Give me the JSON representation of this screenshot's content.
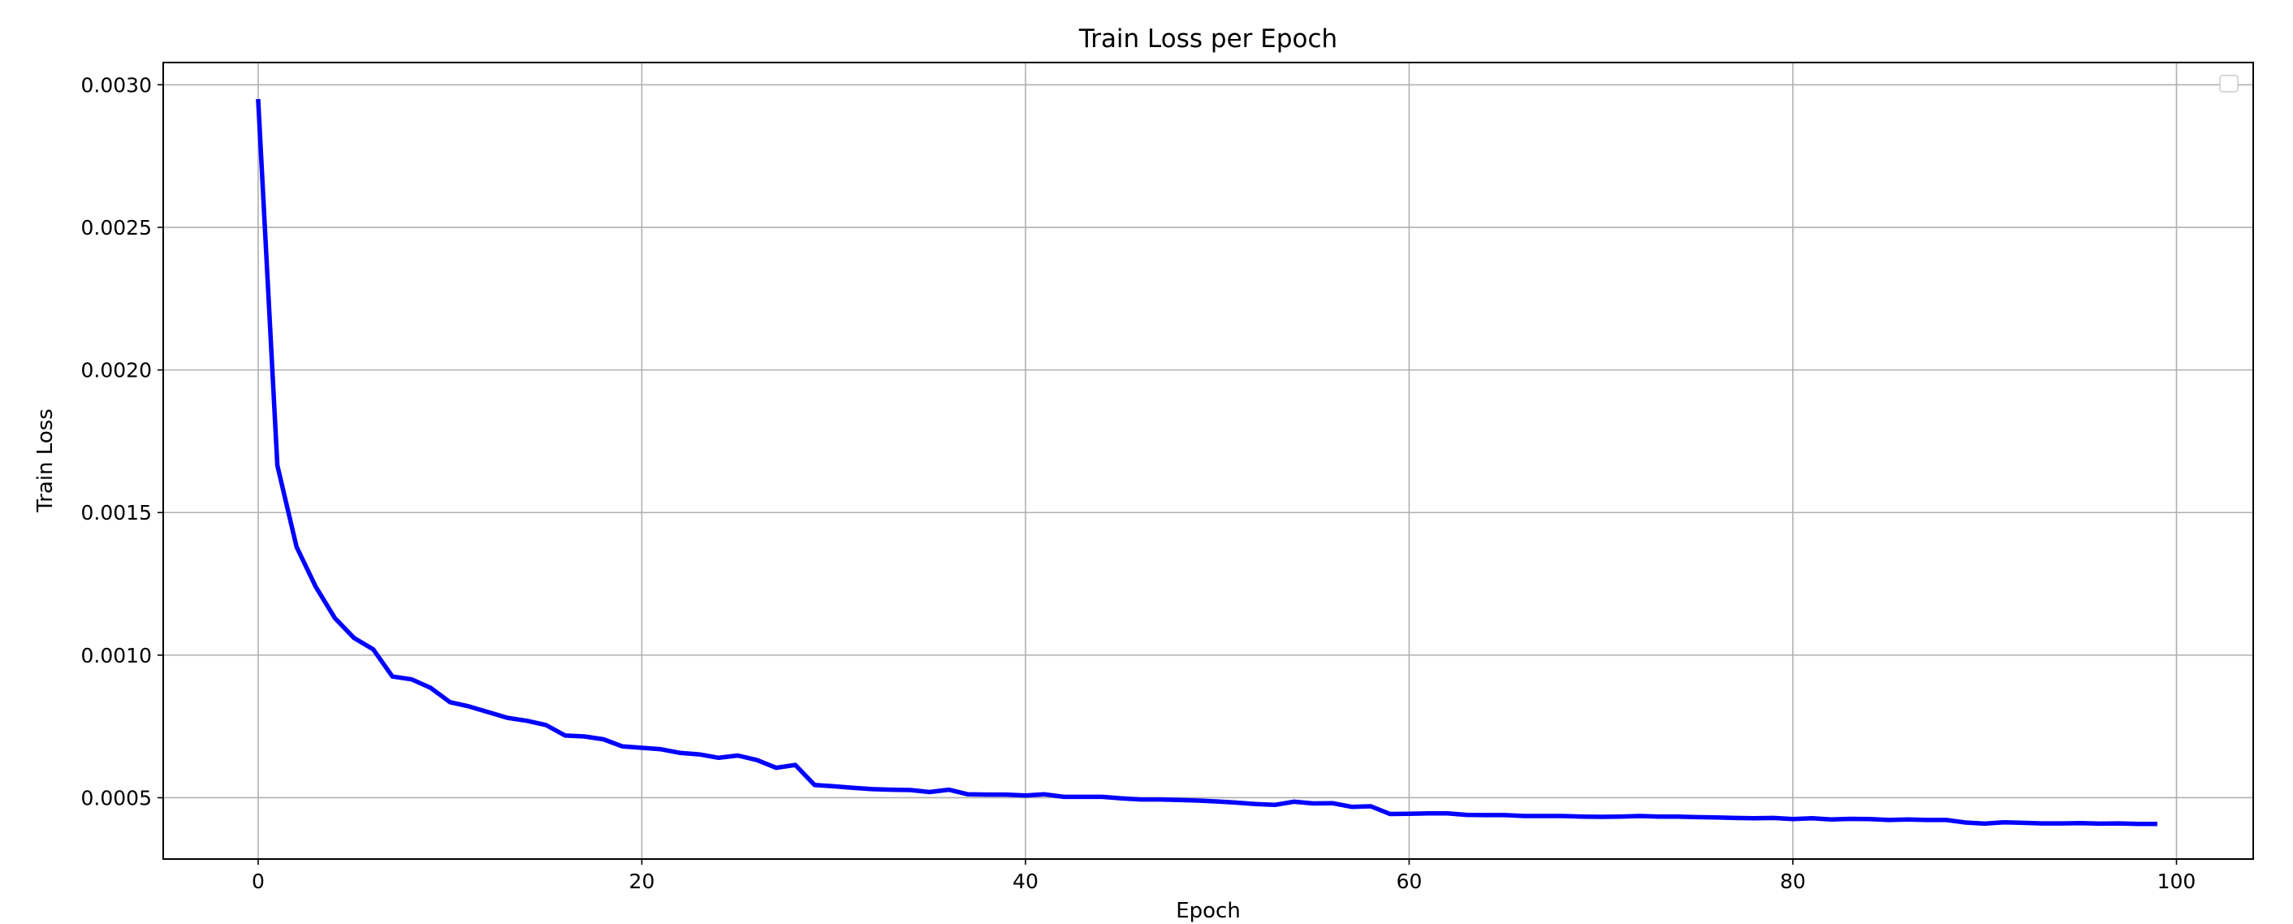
{
  "chart_data": {
    "type": "line",
    "title": "Train Loss per Epoch",
    "xlabel": "Epoch",
    "ylabel": "Train Loss",
    "xlim": [
      -4.95,
      104.0
    ],
    "ylim": [
      0.000285,
      0.003078
    ],
    "xticks": [
      0,
      20,
      40,
      60,
      80,
      100
    ],
    "xtick_labels": [
      "0",
      "20",
      "40",
      "60",
      "80",
      "100"
    ],
    "yticks": [
      0.0005,
      0.001,
      0.0015,
      0.002,
      0.0025,
      0.003
    ],
    "ytick_labels": [
      "0.0005",
      "0.0010",
      "0.0015",
      "0.0020",
      "0.0025",
      "0.0030"
    ],
    "grid": true,
    "legend": {
      "placement": "top-right",
      "entries": []
    },
    "series": [
      {
        "color": "#0000ff",
        "x": [
          0,
          1,
          2,
          3,
          4,
          5,
          6,
          7,
          8,
          9,
          10,
          11,
          12,
          13,
          14,
          15,
          16,
          17,
          18,
          19,
          20,
          21,
          22,
          23,
          24,
          25,
          26,
          27,
          28,
          29,
          30,
          31,
          32,
          33,
          34,
          35,
          36,
          37,
          38,
          39,
          40,
          41,
          42,
          43,
          44,
          45,
          46,
          47,
          48,
          49,
          50,
          51,
          52,
          53,
          54,
          55,
          56,
          57,
          58,
          59,
          60,
          61,
          62,
          63,
          64,
          65,
          66,
          67,
          68,
          69,
          70,
          71,
          72,
          73,
          74,
          75,
          76,
          77,
          78,
          79,
          80,
          81,
          82,
          83,
          84,
          85,
          86,
          87,
          88,
          89,
          90,
          91,
          92,
          93,
          94,
          95,
          96,
          97,
          98,
          99
        ],
        "y": [
          0.00295,
          0.001665,
          0.00138,
          0.00124,
          0.00113,
          0.00106,
          0.00102,
          0.000925,
          0.000915,
          0.000885,
          0.000835,
          0.00082,
          0.0008,
          0.00078,
          0.00077,
          0.000755,
          0.000718,
          0.000715,
          0.000705,
          0.00068,
          0.000675,
          0.00067,
          0.000657,
          0.000652,
          0.00064,
          0.000648,
          0.000632,
          0.000605,
          0.000615,
          0.000545,
          0.00054,
          0.000535,
          0.00053,
          0.000528,
          0.000527,
          0.00052,
          0.000528,
          0.000512,
          0.000511,
          0.000511,
          0.000508,
          0.000512,
          0.000503,
          0.000503,
          0.000503,
          0.000498,
          0.000494,
          0.000494,
          0.000492,
          0.00049,
          0.000487,
          0.000483,
          0.000478,
          0.000475,
          0.000486,
          0.00048,
          0.000481,
          0.000468,
          0.00047,
          0.000443,
          0.000444,
          0.000445,
          0.000445,
          0.00044,
          0.000439,
          0.000439,
          0.000436,
          0.000436,
          0.000436,
          0.000434,
          0.000433,
          0.000434,
          0.000436,
          0.000434,
          0.000434,
          0.000432,
          0.000431,
          0.000429,
          0.000428,
          0.000429,
          0.000425,
          0.000428,
          0.000424,
          0.000426,
          0.000425,
          0.000422,
          0.000424,
          0.000422,
          0.000422,
          0.000413,
          0.000409,
          0.000414,
          0.000412,
          0.00041,
          0.00041,
          0.000411,
          0.000409,
          0.00041,
          0.000408,
          0.000408
        ]
      }
    ]
  }
}
